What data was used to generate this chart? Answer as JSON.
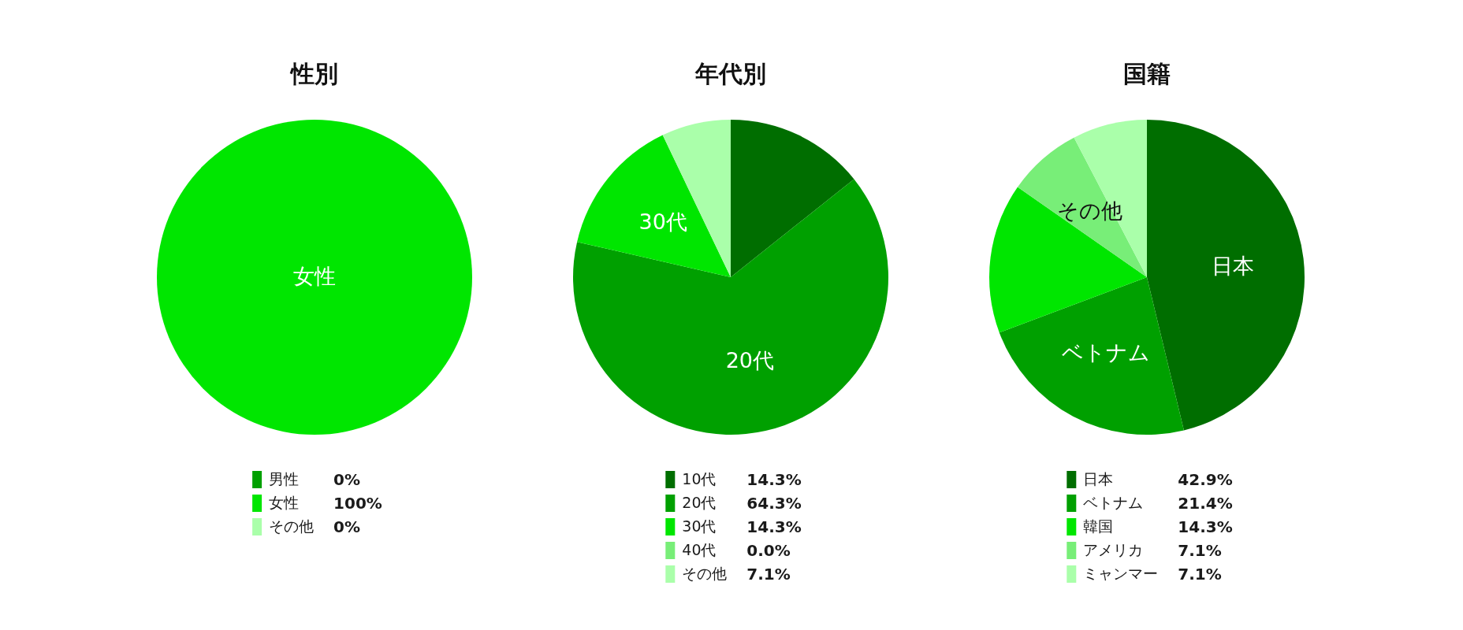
{
  "chart_data": [
    {
      "type": "pie",
      "title": "性別",
      "categories": [
        "男性",
        "女性",
        "その他"
      ],
      "values": [
        0,
        100,
        0
      ],
      "colors": [
        "#00a000",
        "#00e600",
        "#aaffaa"
      ],
      "value_labels": [
        "0%",
        "100%",
        "0%"
      ],
      "legend": "bottom",
      "annotations": [
        {
          "text": "女性",
          "x": "女性"
        }
      ]
    },
    {
      "type": "pie",
      "title": "年代別",
      "categories": [
        "10代",
        "20代",
        "30代",
        "40代",
        "その他"
      ],
      "values": [
        14.3,
        64.3,
        14.3,
        0,
        7.1
      ],
      "colors": [
        "#006e00",
        "#00a000",
        "#00e600",
        "#78ee78",
        "#aaffaa"
      ],
      "value_labels": [
        "14.3%",
        "64.3%",
        "14.3%",
        "0.0%",
        "7.1%"
      ],
      "legend": "bottom",
      "annotations": [
        {
          "text": "30代",
          "x": "30代"
        },
        {
          "text": "20代",
          "x": "20代"
        }
      ]
    },
    {
      "type": "pie",
      "title": "国籍",
      "categories": [
        "日本",
        "ベトナム",
        "韓国",
        "アメリカ",
        "ミャンマー"
      ],
      "values": [
        42.9,
        21.4,
        14.3,
        7.1,
        7.1
      ],
      "colors": [
        "#006e00",
        "#00a000",
        "#00e600",
        "#78ee78",
        "#aaffaa"
      ],
      "value_labels": [
        "42.9%",
        "21.4%",
        "14.3%",
        "7.1%",
        "7.1%"
      ],
      "legend": "bottom",
      "annotations": [
        {
          "text": "その他",
          "x": "アメリカ"
        },
        {
          "text": "日本",
          "x": "日本"
        },
        {
          "text": "ベトナム",
          "x": "ベトナム"
        }
      ]
    }
  ]
}
